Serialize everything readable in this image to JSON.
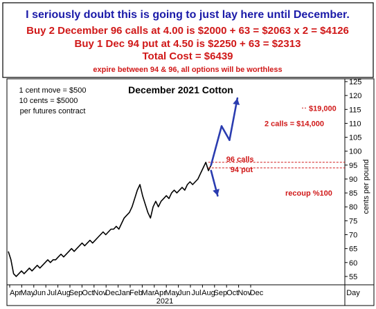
{
  "header": {
    "line1": "I seriously doubt this is going to just lay here until December.",
    "line2": "Buy 2  December 96 calls at 4.00 is $2000 + 63 = $2063 x 2 = $4126",
    "line3": "Buy 1 Dec 94 put at 4.50 is $2250 + 63 = $2313",
    "line4": "Total Cost = $6439",
    "line5": "expire between 94 & 96, all options will be worthless"
  },
  "notes": {
    "line1": "1 cent move = $500",
    "line2": "10 cents = $5000",
    "line3": "per futures contract"
  },
  "colors": {
    "header_blue": "#1a1aa8",
    "header_red": "#d01818",
    "price": "#000000",
    "arrow": "#2a3cb0",
    "annotation": "#d01818"
  },
  "chart_data": {
    "type": "line",
    "title": "December 2021 Cotton",
    "ylabel": "cents per pound",
    "xlabel": "",
    "ylim": [
      52,
      126
    ],
    "yticks": [
      55,
      60,
      65,
      70,
      75,
      80,
      85,
      90,
      95,
      100,
      105,
      110,
      115,
      120,
      125
    ],
    "month_labels": [
      "Apr",
      "May",
      "Jun",
      "Jul",
      "Aug",
      "Sep",
      "Oct",
      "Nov",
      "Dec",
      "Jan",
      "Feb",
      "Mar",
      "Apr",
      "May",
      "Jun",
      "Jul",
      "Aug",
      "Sep",
      "Oct",
      "Nov",
      "Dec"
    ],
    "year_label": "2021",
    "right_axis_label": "Day",
    "series": [
      {
        "values": [
          64,
          61,
          56,
          55,
          56,
          57,
          56,
          57,
          58,
          57,
          58,
          59,
          58,
          59,
          60,
          61,
          60,
          61,
          61,
          62,
          63,
          62,
          63,
          64,
          65,
          64,
          65,
          66,
          67,
          66,
          67,
          68,
          67,
          68,
          69,
          70,
          71,
          70,
          71,
          72,
          72,
          73,
          72,
          74,
          76,
          77,
          78,
          80,
          83,
          86,
          88,
          84,
          81,
          78,
          76,
          80,
          82,
          80,
          82,
          83,
          84,
          83,
          85,
          86,
          85,
          86,
          87,
          86,
          88,
          89,
          88,
          89,
          90,
          92,
          94,
          96,
          93,
          95
        ]
      }
    ],
    "levels": [
      {
        "value": 96,
        "label": "96 calls"
      },
      {
        "value": 94,
        "label": "94 put"
      }
    ],
    "annotations": [
      {
        "label": "$19,000",
        "y": 115.5
      },
      {
        "label": "2  calls = $14,000",
        "y": 110
      },
      {
        "label": "recoup %100",
        "y": 85
      }
    ],
    "arrows": [
      {
        "from": [
          77,
          95
        ],
        "to": [
          81,
          109
        ]
      },
      {
        "from": [
          81,
          109
        ],
        "to": [
          84,
          104
        ]
      },
      {
        "from": [
          84,
          104
        ],
        "to": [
          87,
          119
        ]
      },
      {
        "from": [
          77,
          93
        ],
        "to": [
          79.5,
          84
        ]
      }
    ]
  }
}
